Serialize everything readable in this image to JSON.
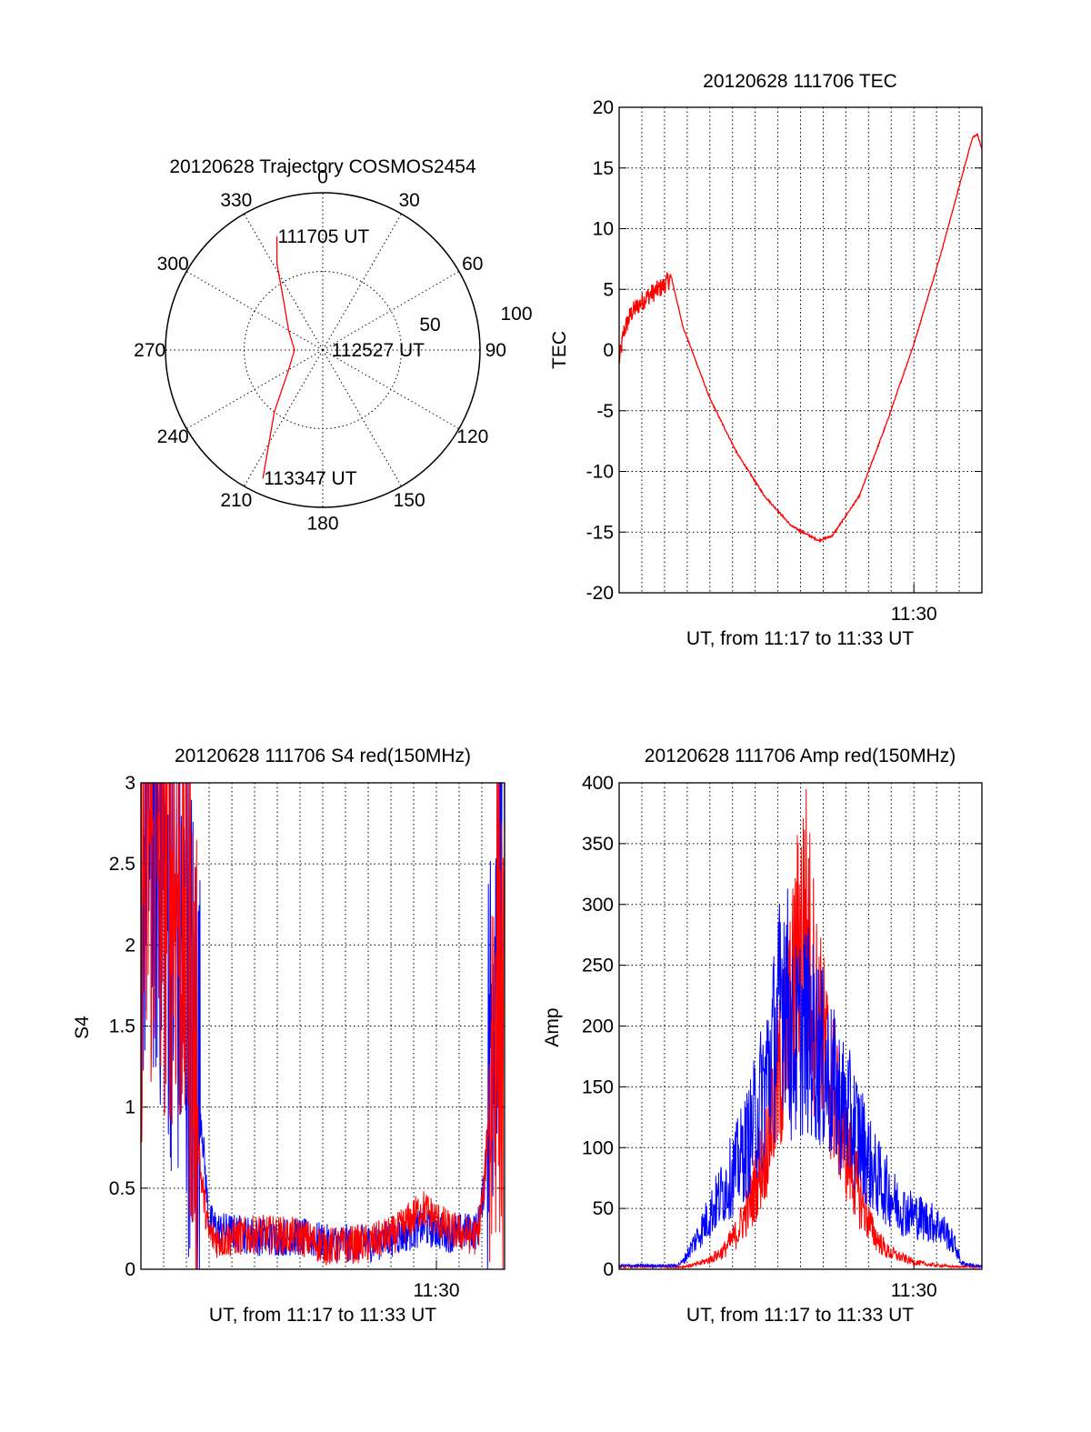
{
  "chart_data": [
    {
      "type": "polar",
      "title": "20120628 Trajectory COSMOS2454",
      "azimuth_labels": [
        "0",
        "30",
        "60",
        "90",
        "120",
        "150",
        "180",
        "210",
        "240",
        "270",
        "300",
        "330"
      ],
      "radial_labels": [
        "50",
        "100"
      ],
      "grid": true,
      "series": [
        {
          "color": "#ff0000",
          "points": [
            [
              338,
              78
            ],
            [
              332,
              62
            ],
            [
              325,
              45
            ],
            [
              300,
              25
            ],
            [
              270,
              18
            ],
            [
              240,
              25
            ],
            [
              218,
              50
            ],
            [
              205,
              90
            ]
          ]
        }
      ],
      "annotations": [
        {
          "text": "111705 UT",
          "azimuth": 338,
          "radius": 78
        },
        {
          "text": "112527 UT",
          "azimuth": 90,
          "radius": 5
        },
        {
          "text": "113347 UT",
          "azimuth": 205,
          "radius": 90
        }
      ]
    },
    {
      "type": "line",
      "title": "20120628 111706 TEC",
      "xlabel": "UT, from 11:17 to 11:33 UT",
      "ylabel": "TEC",
      "xlim": [
        11.2833,
        11.55
      ],
      "ylim": [
        -20,
        20
      ],
      "yticks": [
        "-20",
        "-15",
        "-10",
        "-5",
        "0",
        "5",
        "10",
        "15",
        "20"
      ],
      "xticks": [
        {
          "value": 11.5,
          "label": "11:30"
        }
      ],
      "grid": true,
      "series": [
        {
          "color": "#ff0000",
          "points": [
            [
              11.2833,
              -1
            ],
            [
              11.2867,
              1.5
            ],
            [
              11.292,
              3
            ],
            [
              11.2983,
              3.8
            ],
            [
              11.305,
              4.5
            ],
            [
              11.315,
              5.2
            ],
            [
              11.3217,
              6
            ],
            [
              11.33,
              2
            ],
            [
              11.35,
              -4
            ],
            [
              11.37,
              -8.5
            ],
            [
              11.39,
              -12
            ],
            [
              11.41,
              -14.5
            ],
            [
              11.43,
              -15.7
            ],
            [
              11.44,
              -15.3
            ],
            [
              11.46,
              -12
            ],
            [
              11.48,
              -6
            ],
            [
              11.5,
              0.5
            ],
            [
              11.52,
              8
            ],
            [
              11.537,
              15
            ],
            [
              11.543,
              17.5
            ],
            [
              11.5467,
              17.8
            ],
            [
              11.55,
              16.5
            ]
          ]
        }
      ]
    },
    {
      "type": "line",
      "title": "20120628 111706 S4 red(150MHz)",
      "xlabel": "UT, from 11:17 to 11:33 UT",
      "ylabel": "S4",
      "xlim": [
        11.2833,
        11.55
      ],
      "ylim": [
        0,
        3
      ],
      "yticks": [
        "0",
        "0.5",
        "1",
        "1.5",
        "2",
        "2.5",
        "3"
      ],
      "xticks": [
        {
          "value": 11.5,
          "label": "11:30"
        }
      ],
      "grid": true,
      "series": [
        {
          "color": "#0000ff",
          "points": [
            [
              11.2833,
              2.6
            ],
            [
              11.29,
              2.8
            ],
            [
              11.3,
              2.4
            ],
            [
              11.31,
              2.0
            ],
            [
              11.32,
              1.6
            ],
            [
              11.327,
              1.0
            ],
            [
              11.333,
              0.3
            ],
            [
              11.34,
              0.24
            ],
            [
              11.37,
              0.2
            ],
            [
              11.4,
              0.2
            ],
            [
              11.42,
              0.16
            ],
            [
              11.45,
              0.16
            ],
            [
              11.47,
              0.2
            ],
            [
              11.49,
              0.26
            ],
            [
              11.51,
              0.22
            ],
            [
              11.53,
              0.24
            ],
            [
              11.535,
              0.5
            ],
            [
              11.54,
              1.5
            ],
            [
              11.545,
              2.5
            ],
            [
              11.55,
              3.0
            ]
          ]
        },
        {
          "color": "#ff0000",
          "points": [
            [
              11.2833,
              2.3
            ],
            [
              11.29,
              2.6
            ],
            [
              11.3,
              2.5
            ],
            [
              11.31,
              2.4
            ],
            [
              11.32,
              1.8
            ],
            [
              11.327,
              0.6
            ],
            [
              11.333,
              0.22
            ],
            [
              11.34,
              0.18
            ],
            [
              11.37,
              0.22
            ],
            [
              11.4,
              0.2
            ],
            [
              11.42,
              0.14
            ],
            [
              11.45,
              0.16
            ],
            [
              11.47,
              0.22
            ],
            [
              11.49,
              0.38
            ],
            [
              11.51,
              0.24
            ],
            [
              11.53,
              0.2
            ],
            [
              11.535,
              0.5
            ],
            [
              11.54,
              1.2
            ],
            [
              11.545,
              2.0
            ],
            [
              11.55,
              1.0
            ]
          ]
        }
      ]
    },
    {
      "type": "line",
      "title": "20120628 111706 Amp red(150MHz)",
      "xlabel": "UT, from 11:17 to 11:33 UT",
      "ylabel": "Amp",
      "xlim": [
        11.2833,
        11.55
      ],
      "ylim": [
        0,
        400
      ],
      "yticks": [
        "0",
        "50",
        "100",
        "150",
        "200",
        "250",
        "300",
        "350",
        "400"
      ],
      "xticks": [
        {
          "value": 11.5,
          "label": "11:30"
        }
      ],
      "grid": true,
      "series": [
        {
          "color": "#ff0000",
          "points": [
            [
              11.2833,
              2
            ],
            [
              11.33,
              2
            ],
            [
              11.34,
              4
            ],
            [
              11.35,
              8
            ],
            [
              11.36,
              15
            ],
            [
              11.37,
              30
            ],
            [
              11.38,
              55
            ],
            [
              11.39,
              95
            ],
            [
              11.4,
              150
            ],
            [
              11.41,
              210
            ],
            [
              11.415,
              260
            ],
            [
              11.42,
              290
            ],
            [
              11.425,
              240
            ],
            [
              11.43,
              200
            ],
            [
              11.44,
              150
            ],
            [
              11.45,
              100
            ],
            [
              11.46,
              60
            ],
            [
              11.47,
              30
            ],
            [
              11.48,
              15
            ],
            [
              11.49,
              10
            ],
            [
              11.5,
              6
            ],
            [
              11.51,
              4
            ],
            [
              11.52,
              3
            ],
            [
              11.53,
              2
            ],
            [
              11.55,
              2
            ]
          ]
        },
        {
          "color": "#0000ff",
          "points": [
            [
              11.2833,
              3
            ],
            [
              11.325,
              3
            ],
            [
              11.33,
              6
            ],
            [
              11.34,
              25
            ],
            [
              11.35,
              45
            ],
            [
              11.36,
              65
            ],
            [
              11.37,
              85
            ],
            [
              11.38,
              110
            ],
            [
              11.39,
              150
            ],
            [
              11.4,
              200
            ],
            [
              11.405,
              250
            ],
            [
              11.41,
              180
            ],
            [
              11.42,
              200
            ],
            [
              11.43,
              180
            ],
            [
              11.44,
              150
            ],
            [
              11.45,
              130
            ],
            [
              11.46,
              110
            ],
            [
              11.47,
              80
            ],
            [
              11.48,
              65
            ],
            [
              11.49,
              50
            ],
            [
              11.5,
              45
            ],
            [
              11.51,
              40
            ],
            [
              11.52,
              35
            ],
            [
              11.53,
              20
            ],
            [
              11.535,
              5
            ],
            [
              11.55,
              2
            ]
          ]
        }
      ]
    }
  ]
}
